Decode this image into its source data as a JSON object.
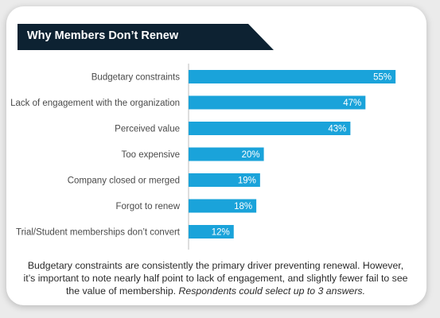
{
  "title": "Why Members Don’t Renew",
  "caption_main": "Budgetary constraints are consistently the primary driver preventing renewal. However, it’s important to note nearly half point to lack of engagement, and slightly fewer fail to see the value of membership.",
  "caption_note": "Respondents could select up to 3 answers.",
  "colors": {
    "bar": "#1aa3da",
    "banner": "#0d2232",
    "axis": "#bdbdbd"
  },
  "chart_data": {
    "type": "bar",
    "orientation": "horizontal",
    "title": "Why Members Don’t Renew",
    "categories": [
      "Budgetary constraints",
      "Lack of engagement with the organization",
      "Perceived value",
      "Too expensive",
      "Company closed or merged",
      "Forgot to renew",
      "Trial/Student memberships don’t convert"
    ],
    "values": [
      55,
      47,
      43,
      20,
      19,
      18,
      12
    ],
    "value_labels": [
      "55%",
      "47%",
      "43%",
      "20%",
      "19%",
      "18%",
      "12%"
    ],
    "xlim": [
      0,
      60
    ],
    "grid": false
  }
}
